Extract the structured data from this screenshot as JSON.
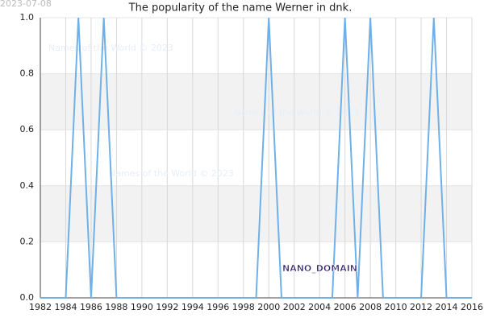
{
  "chart_data": {
    "type": "line",
    "title": "The popularity of the name Werner in dnk.",
    "date_stamp": "2023-07-08",
    "watermarks": [
      "Names of the World © 2023",
      "Names of the World © 2023",
      "Names of the World © 2023"
    ],
    "domain_label": "NANO_DOMAIN",
    "x": [
      1982,
      1983,
      1984,
      1985,
      1986,
      1987,
      1988,
      1989,
      1990,
      1991,
      1992,
      1993,
      1994,
      1995,
      1996,
      1997,
      1998,
      1999,
      2000,
      2001,
      2002,
      2003,
      2004,
      2005,
      2006,
      2007,
      2008,
      2009,
      2010,
      2011,
      2012,
      2013,
      2014,
      2015,
      2016
    ],
    "series": [
      {
        "name": "Werner",
        "color": "#70b0e8",
        "values": [
          0,
          0,
          0,
          1,
          0,
          1,
          0,
          0,
          0,
          0,
          0,
          0,
          0,
          0,
          0,
          0,
          0,
          0,
          1,
          0,
          0,
          0,
          0,
          0,
          1,
          0,
          1,
          0,
          0,
          0,
          0,
          1,
          0,
          0,
          0
        ]
      }
    ],
    "xlim": [
      1982,
      2016
    ],
    "xticks": [
      1982,
      1984,
      1986,
      1988,
      1990,
      1992,
      1994,
      1996,
      1998,
      2000,
      2002,
      2004,
      2006,
      2008,
      2010,
      2012,
      2014,
      2016
    ],
    "ylim": [
      0,
      1
    ],
    "yticks": [
      {
        "value": 0,
        "label": "0.0"
      },
      {
        "value": 0.2,
        "label": "0.2"
      },
      {
        "value": 0.4,
        "label": "0.4"
      },
      {
        "value": 0.6,
        "label": "0.6"
      },
      {
        "value": 0.8,
        "label": "0.8"
      },
      {
        "value": 1,
        "label": "1.0"
      }
    ],
    "grid": true
  }
}
